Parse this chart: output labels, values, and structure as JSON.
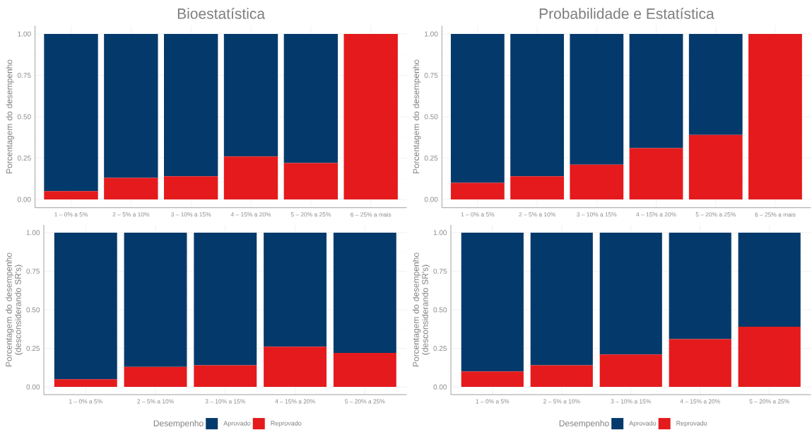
{
  "chart_data": [
    {
      "type": "bar",
      "stacked": true,
      "title": "Bioestatística",
      "ylabel": "Porcentagem do desempenho",
      "categories": [
        "1 – 0% a 5%",
        "2 – 5% a 10%",
        "3 – 10% a 15%",
        "4 – 15% a 20%",
        "5 – 20% a 25%",
        "6 – 25% a mais"
      ],
      "series": [
        {
          "color": "#e41a1c",
          "values": [
            0.05,
            0.13,
            0.14,
            0.26,
            0.22,
            1.0
          ]
        },
        {
          "color": "#033a6b",
          "values": [
            0.95,
            0.87,
            0.86,
            0.74,
            0.78,
            0
          ]
        }
      ],
      "ylim": [
        -0.05,
        1.05
      ],
      "yticks": [
        {
          "value": 0,
          "label": "0.00"
        },
        {
          "value": 0.25,
          "label": "0.25"
        },
        {
          "value": 0.5,
          "label": "0.50"
        },
        {
          "value": 0.75,
          "label": "0.75"
        },
        {
          "value": 1,
          "label": "1.00"
        }
      ],
      "grid": true
    },
    {
      "type": "bar",
      "stacked": true,
      "title": "Probabilidade e Estatística",
      "ylabel": "Porcentagem do desempenho",
      "categories": [
        "1 – 0% a 5%",
        "2 – 5% a 10%",
        "3 – 10% a 15%",
        "4 – 15% a 20%",
        "5 – 20% a 25%",
        "6 – 25% a mais"
      ],
      "series": [
        {
          "color": "#e41a1c",
          "values": [
            0.1,
            0.14,
            0.21,
            0.31,
            0.39,
            1.0
          ]
        },
        {
          "color": "#033a6b",
          "values": [
            0.9,
            0.86,
            0.79,
            0.69,
            0.61,
            0
          ]
        }
      ],
      "ylim": [
        -0.05,
        1.05
      ],
      "yticks": [
        {
          "value": 0,
          "label": "0.00"
        },
        {
          "value": 0.25,
          "label": "0.25"
        },
        {
          "value": 0.5,
          "label": "0.50"
        },
        {
          "value": 0.75,
          "label": "0.75"
        },
        {
          "value": 1,
          "label": "1.00"
        }
      ],
      "grid": true
    },
    {
      "type": "bar",
      "stacked": true,
      "ylabel": "Porcentagem do desempenho (desconsiderando SR's)",
      "categories": [
        "1 – 0% a 5%",
        "2 – 5% a 10%",
        "3 – 10% a 15%",
        "4 – 15% a 20%",
        "5 – 20% a 25%"
      ],
      "series": [
        {
          "name": "Reprovado",
          "color": "#e41a1c",
          "values": [
            0.05,
            0.13,
            0.14,
            0.26,
            0.22
          ]
        },
        {
          "name": "Aprovado",
          "color": "#033a6b",
          "values": [
            0.95,
            0.87,
            0.86,
            0.74,
            0.78
          ]
        }
      ],
      "ylim": [
        -0.05,
        1.05
      ],
      "yticks": [
        {
          "value": 0,
          "label": "0.00"
        },
        {
          "value": 0.25,
          "label": "0.25"
        },
        {
          "value": 0.5,
          "label": "0.50"
        },
        {
          "value": 0.75,
          "label": "0.75"
        },
        {
          "value": 1,
          "label": "1.00"
        }
      ],
      "grid": true,
      "legend": "bottom",
      "legend_title": "Desempenho"
    },
    {
      "type": "bar",
      "stacked": true,
      "ylabel": "Porcentagem do desempenho (desconsiderando SR's)",
      "categories": [
        "1 – 0% a 5%",
        "2 – 5% a 10%",
        "3 – 10% a 15%",
        "4 – 15% a 20%",
        "5 – 20% a 25%"
      ],
      "series": [
        {
          "name": "Reprovado",
          "color": "#e41a1c",
          "values": [
            0.1,
            0.14,
            0.21,
            0.31,
            0.39
          ]
        },
        {
          "name": "Aprovado",
          "color": "#033a6b",
          "values": [
            0.9,
            0.86,
            0.79,
            0.69,
            0.61
          ]
        }
      ],
      "ylim": [
        -0.05,
        1.05
      ],
      "yticks": [
        {
          "value": 0,
          "label": "0.00"
        },
        {
          "value": 0.25,
          "label": "0.25"
        },
        {
          "value": 0.5,
          "label": "0.50"
        },
        {
          "value": 0.75,
          "label": "0.75"
        },
        {
          "value": 1,
          "label": "1.00"
        }
      ],
      "grid": true,
      "legend": "bottom",
      "legend_title": "Desempenho"
    }
  ]
}
